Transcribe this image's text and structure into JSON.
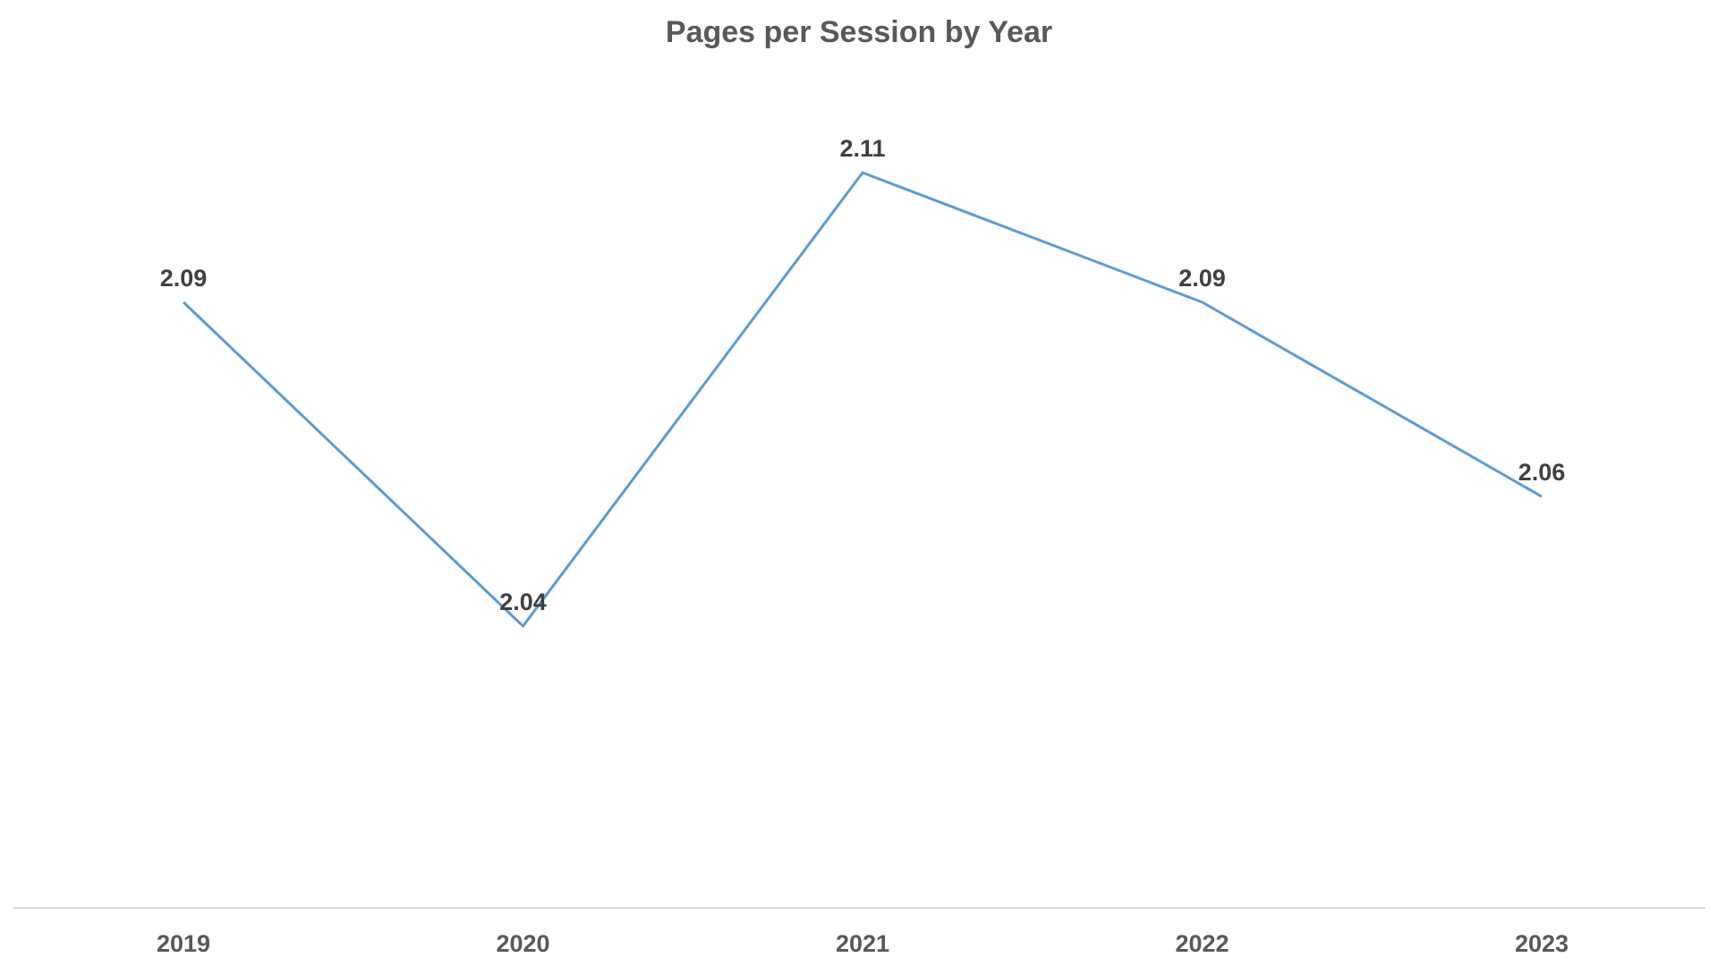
{
  "chart_data": {
    "type": "line",
    "title": "Pages per Session by Year",
    "xlabel": "",
    "ylabel": "",
    "categories": [
      "2019",
      "2020",
      "2021",
      "2022",
      "2023"
    ],
    "series": [
      {
        "values": [
          2.09,
          2.04,
          2.11,
          2.09,
          2.06
        ],
        "data_labels": [
          "2.09",
          "2.04",
          "2.11",
          "2.09",
          "2.06"
        ],
        "color": "#5B9BD5"
      }
    ],
    "ylim": [
      1.93,
      2.14
    ],
    "grid": false,
    "legend": "none",
    "axis_color": "#D9D9D9"
  }
}
